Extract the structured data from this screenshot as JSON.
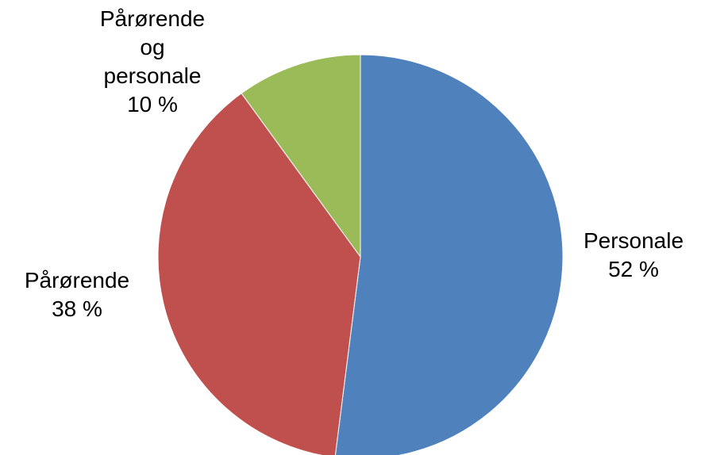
{
  "chart_data": {
    "type": "pie",
    "title": "",
    "start_angle_deg": 0,
    "direction": "clockwise",
    "slices": [
      {
        "label": "Personale",
        "value": 52,
        "value_text": "52 %",
        "color": "#4F81BD"
      },
      {
        "label": "Pårørende",
        "value": 38,
        "value_text": "38 %",
        "color": "#C0504D"
      },
      {
        "label_lines": [
          "Pårørende",
          "og",
          "personale"
        ],
        "value": 10,
        "value_text": "10 %",
        "color": "#9BBB59"
      }
    ]
  }
}
